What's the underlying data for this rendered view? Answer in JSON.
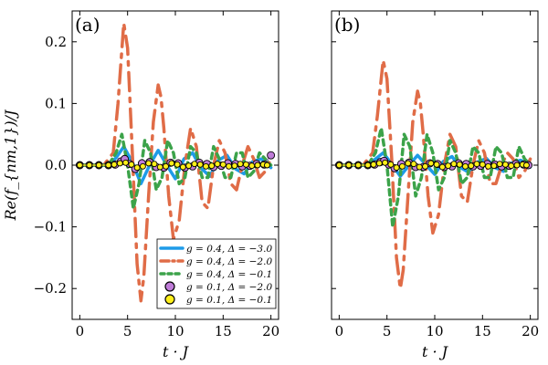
{
  "chart_data": {
    "type": "line",
    "xlabel": "t · J",
    "ylabel": "Re(f_{nm,1})/J",
    "xlim": [
      -0.8,
      20.8
    ],
    "ylim": [
      -0.25,
      0.25
    ],
    "xticks": [
      0,
      5,
      10,
      15,
      20
    ],
    "yticks": [
      -0.2,
      -0.1,
      0.0,
      0.1,
      0.2
    ],
    "ytick_labels": [
      "−0.2",
      "−0.1",
      "0.0",
      "0.1",
      "0.2"
    ],
    "grid": false,
    "legend_position": "bottom-right",
    "legend": [
      {
        "label": "g = 0.4, Δ = −3.0",
        "style": "solid",
        "color": "#1e9be8"
      },
      {
        "label": "g = 0.4, Δ = −2.0",
        "style": "dashdot",
        "color": "#e06c47"
      },
      {
        "label": "g = 0.4, Δ = −0.1",
        "style": "dotted",
        "color": "#3ca34a"
      },
      {
        "label": "g = 0.1, Δ = −2.0",
        "style": "marker",
        "color": "#bf7cd8"
      },
      {
        "label": "g = 0.1, Δ = −0.1",
        "style": "marker",
        "color": "#ffef1a"
      }
    ],
    "panels": [
      {
        "label": "(a)",
        "series": [
          {
            "name": "g = 0.4, Δ = −3.0",
            "x": [
              0,
              3,
              3.8,
              4.6,
              5.5,
              6.4,
              7.3,
              8.2,
              9.1,
              10.0,
              10.9,
              11.8,
              12.7,
              13.6,
              14.5,
              15.4,
              16.3,
              17.2,
              18.1,
              19.0,
              20.0
            ],
            "y": [
              0,
              0.0,
              0.012,
              0.03,
              0.005,
              -0.03,
              0.0,
              0.024,
              0.0,
              -0.022,
              0.01,
              0.02,
              -0.005,
              -0.018,
              0.008,
              0.016,
              -0.006,
              -0.014,
              0.006,
              0.01,
              -0.004
            ]
          },
          {
            "name": "g = 0.4, Δ = −2.0",
            "x": [
              0,
              2.5,
              3.5,
              4.0,
              4.6,
              5.0,
              5.5,
              6.0,
              6.4,
              6.7,
              7.2,
              7.7,
              8.2,
              8.5,
              8.8,
              9.3,
              9.8,
              10.4,
              11.0,
              11.6,
              12.2,
              12.8,
              13.4,
              14.0,
              14.6,
              15.2,
              15.8,
              16.4,
              17.0,
              17.6,
              18.2,
              18.8,
              19.4,
              20.0
            ],
            "y": [
              0,
              0,
              0.02,
              0.1,
              0.23,
              0.19,
              0.02,
              -0.16,
              -0.22,
              -0.18,
              -0.05,
              0.07,
              0.13,
              0.11,
              0.06,
              -0.05,
              -0.12,
              -0.09,
              0.0,
              0.06,
              0.03,
              -0.06,
              -0.07,
              0.0,
              0.04,
              0.02,
              -0.03,
              -0.04,
              0.0,
              0.03,
              0.01,
              -0.02,
              -0.01,
              0.01
            ]
          },
          {
            "name": "g = 0.4, Δ = −0.1",
            "x": [
              0,
              3,
              3.8,
              4.4,
              5.0,
              5.6,
              6.2,
              6.8,
              7.4,
              8.0,
              8.6,
              9.2,
              9.8,
              10.4,
              11.0,
              11.6,
              12.2,
              12.8,
              13.4,
              14.0,
              14.6,
              15.2,
              15.8,
              16.4,
              17.0,
              17.6,
              18.2,
              18.8,
              19.4,
              20.0
            ],
            "y": [
              0,
              0,
              0.02,
              0.05,
              0.0,
              -0.07,
              -0.03,
              0.04,
              0.02,
              -0.04,
              -0.02,
              0.04,
              0.02,
              -0.03,
              -0.02,
              0.03,
              0.02,
              -0.02,
              -0.02,
              0.03,
              0.01,
              -0.02,
              -0.02,
              0.02,
              0.02,
              -0.02,
              -0.01,
              0.02,
              0.01,
              0.0
            ]
          },
          {
            "name": "g = 0.1, Δ = −2.0",
            "x": [
              0,
              1,
              2,
              3,
              3.7,
              4.3,
              4.7,
              5.2,
              5.8,
              6.5,
              7.3,
              8.0,
              8.8,
              9.5,
              10.3,
              11.0,
              11.8,
              12.5,
              13.3,
              14.0,
              14.8,
              15.5,
              16.3,
              17.0,
              17.8,
              18.5,
              19.3,
              20.0
            ],
            "y": [
              0,
              0,
              0,
              0,
              0.001,
              0.006,
              0.01,
              0.002,
              -0.006,
              0.003,
              0.005,
              -0.003,
              -0.004,
              0.004,
              0.003,
              -0.004,
              -0.002,
              0.004,
              0.002,
              -0.003,
              -0.001,
              0.003,
              0.002,
              -0.002,
              -0.001,
              0.002,
              0.001,
              0.016
            ]
          },
          {
            "name": "g = 0.1, Δ = −0.1",
            "x": [
              0,
              1,
              2,
              3,
              3.6,
              4.2,
              4.8,
              5.4,
              6.0,
              6.6,
              7.2,
              7.8,
              8.4,
              9.0,
              9.6,
              10.2,
              10.8,
              11.4,
              12.0,
              12.6,
              13.2,
              13.8,
              14.4,
              15.0,
              15.6,
              16.2,
              16.8,
              17.4,
              18.0,
              18.6,
              19.2,
              19.6
            ],
            "y": [
              0,
              0,
              0,
              0,
              0.001,
              0.003,
              0.004,
              0.001,
              -0.004,
              -0.002,
              0.003,
              0.002,
              -0.003,
              -0.002,
              0.003,
              0.001,
              -0.003,
              -0.001,
              0.002,
              0.001,
              -0.002,
              -0.001,
              0.002,
              0.001,
              -0.002,
              -0.001,
              0.002,
              0.001,
              -0.001,
              0.0,
              0.001,
              0.0
            ]
          }
        ]
      },
      {
        "label": "(b)",
        "series": [
          {
            "name": "g = 0.4, Δ = −3.0",
            "x": [
              0,
              3,
              3.8,
              4.6,
              5.5,
              6.4,
              7.3,
              8.2,
              9.1,
              10.0,
              10.9,
              11.8,
              12.7,
              13.6,
              14.5,
              15.4,
              16.3,
              17.2,
              18.1,
              19.0,
              20.0
            ],
            "y": [
              0,
              0.0,
              0.01,
              0.02,
              0.002,
              -0.018,
              0.0,
              0.016,
              0.0,
              -0.015,
              0.006,
              0.014,
              -0.004,
              -0.012,
              0.005,
              0.011,
              -0.004,
              -0.01,
              0.004,
              0.008,
              -0.003
            ]
          },
          {
            "name": "g = 0.4, Δ = −2.0",
            "x": [
              0,
              2.5,
              3.5,
              4.0,
              4.6,
              5.0,
              5.5,
              6.0,
              6.4,
              6.7,
              7.2,
              7.7,
              8.2,
              8.5,
              8.8,
              9.3,
              9.8,
              10.4,
              11.0,
              11.6,
              12.2,
              12.8,
              13.4,
              14.0,
              14.6,
              15.2,
              15.8,
              16.4,
              17.0,
              17.6,
              18.2,
              18.8,
              19.4,
              20.0
            ],
            "y": [
              0,
              0,
              0.02,
              0.08,
              0.17,
              0.14,
              0.01,
              -0.15,
              -0.2,
              -0.17,
              -0.05,
              0.07,
              0.12,
              0.1,
              0.05,
              -0.05,
              -0.11,
              -0.08,
              0.0,
              0.05,
              0.03,
              -0.05,
              -0.06,
              0.0,
              0.04,
              0.02,
              -0.03,
              -0.03,
              0.0,
              0.02,
              0.01,
              -0.02,
              -0.01,
              0.01
            ]
          },
          {
            "name": "g = 0.4, Δ = −0.1",
            "x": [
              0,
              3,
              3.8,
              4.4,
              5.0,
              5.6,
              6.2,
              6.8,
              7.4,
              8.0,
              8.6,
              9.2,
              9.8,
              10.4,
              11.0,
              11.6,
              12.2,
              12.8,
              13.4,
              14.0,
              14.6,
              15.2,
              15.8,
              16.4,
              17.0,
              17.6,
              18.2,
              18.8,
              19.4,
              20.0
            ],
            "y": [
              0,
              0,
              0.02,
              0.06,
              0.0,
              -0.1,
              -0.05,
              0.05,
              0.03,
              -0.05,
              -0.02,
              0.05,
              0.02,
              -0.04,
              -0.02,
              0.04,
              0.02,
              -0.03,
              -0.02,
              0.03,
              0.02,
              -0.02,
              -0.02,
              0.03,
              0.02,
              -0.02,
              -0.02,
              0.03,
              0.01,
              0.0
            ]
          },
          {
            "name": "g = 0.1, Δ = −2.0",
            "x": [
              0,
              1,
              2,
              3,
              3.7,
              4.3,
              4.7,
              5.2,
              5.8,
              6.5,
              7.3,
              8.0,
              8.8,
              9.5,
              10.3,
              11.0,
              11.8,
              12.5,
              13.3,
              14.0,
              14.8,
              15.5,
              16.3,
              17.0,
              17.8,
              18.5,
              19.3,
              19.8
            ],
            "y": [
              0,
              0,
              0,
              0,
              0.001,
              0.005,
              0.007,
              0.001,
              -0.005,
              0.002,
              0.004,
              -0.003,
              -0.003,
              0.003,
              0.002,
              -0.003,
              -0.002,
              0.003,
              0.002,
              -0.002,
              -0.001,
              0.002,
              0.001,
              -0.002,
              -0.001,
              0.002,
              0.001,
              0.0
            ]
          },
          {
            "name": "g = 0.1, Δ = −0.1",
            "x": [
              0,
              1,
              2,
              3,
              3.6,
              4.2,
              4.8,
              5.4,
              6.0,
              6.6,
              7.2,
              7.8,
              8.4,
              9.0,
              9.6,
              10.2,
              10.8,
              11.4,
              12.0,
              12.6,
              13.2,
              13.8,
              14.4,
              15.0,
              15.6,
              16.2,
              16.8,
              17.4,
              18.0,
              18.6,
              19.2,
              19.6
            ],
            "y": [
              0,
              0,
              0,
              0,
              0.001,
              0.003,
              0.004,
              0.001,
              -0.004,
              -0.002,
              0.003,
              0.002,
              -0.003,
              -0.002,
              0.003,
              0.001,
              -0.003,
              -0.001,
              0.002,
              0.001,
              -0.002,
              -0.001,
              0.002,
              0.001,
              -0.002,
              -0.001,
              0.002,
              0.001,
              -0.001,
              0.0,
              0.001,
              0.0
            ]
          }
        ]
      }
    ]
  }
}
